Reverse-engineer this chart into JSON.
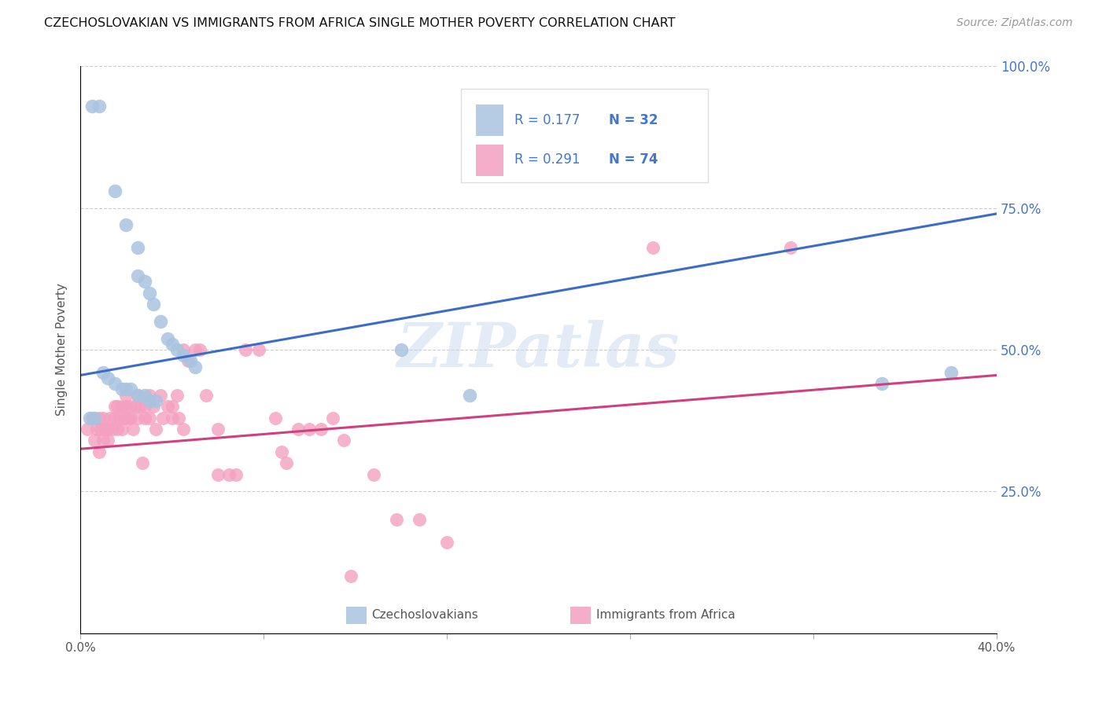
{
  "title": "CZECHOSLOVAKIAN VS IMMIGRANTS FROM AFRICA SINGLE MOTHER POVERTY CORRELATION CHART",
  "source": "Source: ZipAtlas.com",
  "ylabel": "Single Mother Poverty",
  "x_min": 0.0,
  "x_max": 0.4,
  "y_min": 0.0,
  "y_max": 1.0,
  "blue_scatter": [
    [
      0.005,
      0.93
    ],
    [
      0.008,
      0.93
    ],
    [
      0.015,
      0.78
    ],
    [
      0.02,
      0.72
    ],
    [
      0.025,
      0.68
    ],
    [
      0.025,
      0.63
    ],
    [
      0.028,
      0.62
    ],
    [
      0.03,
      0.6
    ],
    [
      0.032,
      0.58
    ],
    [
      0.035,
      0.55
    ],
    [
      0.038,
      0.52
    ],
    [
      0.04,
      0.51
    ],
    [
      0.042,
      0.5
    ],
    [
      0.045,
      0.49
    ],
    [
      0.048,
      0.48
    ],
    [
      0.05,
      0.47
    ],
    [
      0.01,
      0.46
    ],
    [
      0.012,
      0.45
    ],
    [
      0.015,
      0.44
    ],
    [
      0.018,
      0.43
    ],
    [
      0.02,
      0.43
    ],
    [
      0.022,
      0.43
    ],
    [
      0.025,
      0.42
    ],
    [
      0.028,
      0.42
    ],
    [
      0.03,
      0.41
    ],
    [
      0.033,
      0.41
    ],
    [
      0.004,
      0.38
    ],
    [
      0.006,
      0.38
    ],
    [
      0.14,
      0.5
    ],
    [
      0.17,
      0.42
    ],
    [
      0.35,
      0.44
    ],
    [
      0.38,
      0.46
    ]
  ],
  "pink_scatter": [
    [
      0.003,
      0.36
    ],
    [
      0.005,
      0.38
    ],
    [
      0.006,
      0.34
    ],
    [
      0.007,
      0.36
    ],
    [
      0.008,
      0.32
    ],
    [
      0.008,
      0.38
    ],
    [
      0.009,
      0.36
    ],
    [
      0.01,
      0.34
    ],
    [
      0.01,
      0.38
    ],
    [
      0.011,
      0.36
    ],
    [
      0.012,
      0.34
    ],
    [
      0.012,
      0.36
    ],
    [
      0.013,
      0.38
    ],
    [
      0.014,
      0.36
    ],
    [
      0.015,
      0.4
    ],
    [
      0.015,
      0.38
    ],
    [
      0.016,
      0.4
    ],
    [
      0.016,
      0.36
    ],
    [
      0.017,
      0.38
    ],
    [
      0.018,
      0.36
    ],
    [
      0.018,
      0.4
    ],
    [
      0.019,
      0.38
    ],
    [
      0.02,
      0.4
    ],
    [
      0.02,
      0.42
    ],
    [
      0.021,
      0.38
    ],
    [
      0.022,
      0.4
    ],
    [
      0.022,
      0.38
    ],
    [
      0.023,
      0.36
    ],
    [
      0.024,
      0.4
    ],
    [
      0.025,
      0.42
    ],
    [
      0.025,
      0.38
    ],
    [
      0.026,
      0.4
    ],
    [
      0.027,
      0.3
    ],
    [
      0.028,
      0.38
    ],
    [
      0.028,
      0.4
    ],
    [
      0.03,
      0.42
    ],
    [
      0.03,
      0.38
    ],
    [
      0.032,
      0.4
    ],
    [
      0.033,
      0.36
    ],
    [
      0.035,
      0.42
    ],
    [
      0.036,
      0.38
    ],
    [
      0.038,
      0.4
    ],
    [
      0.04,
      0.38
    ],
    [
      0.04,
      0.4
    ],
    [
      0.042,
      0.42
    ],
    [
      0.043,
      0.38
    ],
    [
      0.045,
      0.36
    ],
    [
      0.045,
      0.5
    ],
    [
      0.047,
      0.48
    ],
    [
      0.05,
      0.5
    ],
    [
      0.052,
      0.5
    ],
    [
      0.055,
      0.42
    ],
    [
      0.06,
      0.36
    ],
    [
      0.06,
      0.28
    ],
    [
      0.065,
      0.28
    ],
    [
      0.068,
      0.28
    ],
    [
      0.072,
      0.5
    ],
    [
      0.078,
      0.5
    ],
    [
      0.085,
      0.38
    ],
    [
      0.088,
      0.32
    ],
    [
      0.09,
      0.3
    ],
    [
      0.095,
      0.36
    ],
    [
      0.1,
      0.36
    ],
    [
      0.105,
      0.36
    ],
    [
      0.11,
      0.38
    ],
    [
      0.115,
      0.34
    ],
    [
      0.118,
      0.1
    ],
    [
      0.128,
      0.28
    ],
    [
      0.138,
      0.2
    ],
    [
      0.148,
      0.2
    ],
    [
      0.16,
      0.16
    ],
    [
      0.25,
      0.68
    ],
    [
      0.31,
      0.68
    ]
  ],
  "blue_line_x": [
    0.0,
    0.4
  ],
  "blue_line_y": [
    0.455,
    0.74
  ],
  "pink_line_x": [
    0.0,
    0.4
  ],
  "pink_line_y": [
    0.325,
    0.455
  ],
  "blue_color": "#A8C4E0",
  "pink_color": "#F4A0C0",
  "blue_line_color": "#3B6CC7",
  "pink_line_color": "#D04080",
  "grid_color": "#CCCCCC",
  "title_color": "#111111",
  "right_axis_color": "#4477CC",
  "watermark": "ZIPatlas",
  "legend_r_color": "#111111",
  "legend_n_color": "#3B6CC7"
}
